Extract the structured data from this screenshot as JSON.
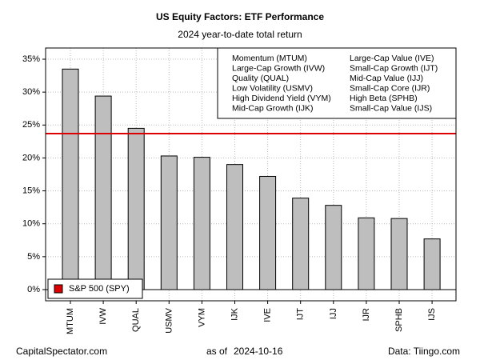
{
  "chart_data": {
    "type": "bar",
    "title": "US Equity Factors: ETF Performance",
    "subtitle": "2024 year-to-date total return",
    "categories": [
      "MTUM",
      "IVW",
      "QUAL",
      "USMV",
      "VYM",
      "IJK",
      "IVE",
      "IJT",
      "IJJ",
      "IJR",
      "SPHB",
      "IJS"
    ],
    "values": [
      33.5,
      29.4,
      24.5,
      20.3,
      20.1,
      19.0,
      17.2,
      13.9,
      12.8,
      10.9,
      10.8,
      7.7
    ],
    "color": "#bebebe",
    "ylim": [
      -1.7,
      36.7
    ],
    "yticks": [
      {
        "value": 0,
        "label": "0%"
      },
      {
        "value": 5,
        "label": "5%"
      },
      {
        "value": 10,
        "label": "10%"
      },
      {
        "value": 15,
        "label": "15%"
      },
      {
        "value": 20,
        "label": "20%"
      },
      {
        "value": 25,
        "label": "25%"
      },
      {
        "value": 30,
        "label": "30%"
      },
      {
        "value": 35,
        "label": "35%"
      }
    ],
    "grid": true,
    "legend_entries": [
      "Momentum (MTUM)",
      "Large-Cap Growth (IVW)",
      "Quality (QUAL)",
      "Low Volatility (USMV)",
      "High Dividend Yield (VYM)",
      "Mid-Cap Growth (IJK)",
      "Large-Cap Value (IVE)",
      "Small-Cap Growth (IJT)",
      "Mid-Cap Value (IJJ)",
      "Small-Cap Core (IJR)",
      "High Beta (SPHB)",
      "Small-Cap Value (IJS)"
    ],
    "reference_line": {
      "name": "S&P 500 (SPY)",
      "value": 23.7,
      "color": "#dd0000"
    },
    "footer": {
      "left": "CapitalSpectator.com",
      "date_label": "as of",
      "date": "2024-10-16",
      "right": "Data: Tiingo.com"
    }
  }
}
